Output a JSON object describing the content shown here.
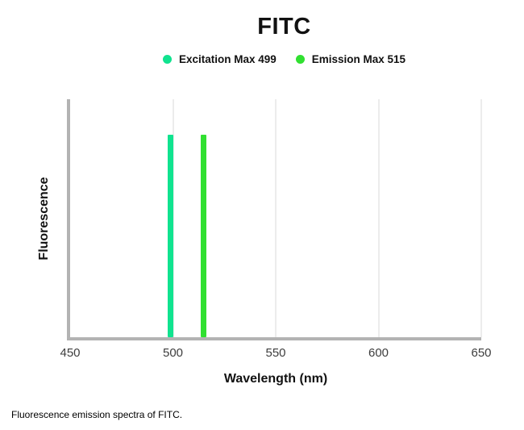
{
  "caption": "Fluorescence emission spectra of FITC.",
  "legend": [
    {
      "label": "Excitation Max 499",
      "color": "#10e38f"
    },
    {
      "label": "Emission Max 515",
      "color": "#31e031"
    }
  ],
  "chart_data": {
    "type": "bar",
    "title": "FITC",
    "xlabel": "Wavelength (nm)",
    "ylabel": "Fluorescence",
    "xlim": [
      450,
      650
    ],
    "x_ticks": [
      450,
      500,
      550,
      600,
      650
    ],
    "grid": "vertical gridlines only, light gray",
    "legend_position": "top-center",
    "axis_color": "#b3b3b3",
    "gridline_color": "#ececec",
    "series": [
      {
        "id": "excitation",
        "name": "Excitation Max 499",
        "x": 499,
        "value": 0.85,
        "color": "#10e38f"
      },
      {
        "id": "emission",
        "name": "Emission Max 515",
        "x": 515,
        "value": 0.85,
        "color": "#31e031"
      }
    ]
  }
}
